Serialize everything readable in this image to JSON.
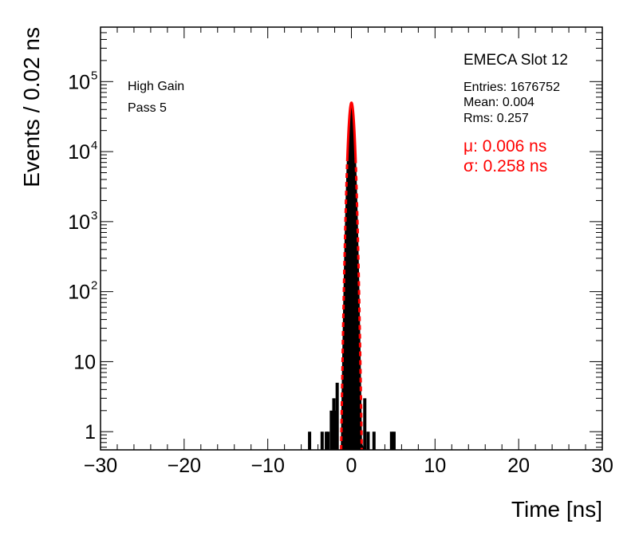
{
  "chart_data": {
    "type": "histogram",
    "title": "EMECA Slot 12",
    "xlabel": "Time [ns]",
    "ylabel": "Events / 0.02 ns",
    "xlim": [
      -30,
      30
    ],
    "ylim": [
      0.55,
      600000
    ],
    "y_scale": "log",
    "x_ticks": [
      {
        "value": -30,
        "label": "−30"
      },
      {
        "value": -20,
        "label": "−20"
      },
      {
        "value": -10,
        "label": "−10"
      },
      {
        "value": 0,
        "label": "0"
      },
      {
        "value": 10,
        "label": "10"
      },
      {
        "value": 20,
        "label": "20"
      },
      {
        "value": 30,
        "label": "30"
      }
    ],
    "y_ticks": [
      {
        "value": 1,
        "base": "1",
        "exp": ""
      },
      {
        "value": 10,
        "base": "10",
        "exp": ""
      },
      {
        "value": 100,
        "base": "10",
        "exp": "2"
      },
      {
        "value": 1000,
        "base": "10",
        "exp": "3"
      },
      {
        "value": 10000,
        "base": "10",
        "exp": "4"
      },
      {
        "value": 100000,
        "base": "10",
        "exp": "5"
      }
    ],
    "labels": {
      "gain": "High Gain",
      "pass": "Pass 5"
    },
    "stats": {
      "entries": "Entries: 1676752",
      "mean": "Mean: 0.004",
      "rms": "Rms: 0.257"
    },
    "fit": {
      "mu_label": "μ: 0.006 ns",
      "sigma_label": "σ: 0.258 ns",
      "mu": 0.006,
      "sigma": 0.258,
      "amplitude": 50000,
      "solid_range": [
        -0.5,
        0.5
      ],
      "color": "#ff0000"
    },
    "histogram": {
      "bin_width": 0.02,
      "color": "#000000",
      "core": {
        "mu": 0.004,
        "sigma": 0.257,
        "amplitude": 50000,
        "range": [
          -1.5,
          1.5
        ]
      },
      "tail_bins": [
        {
          "x": -5.0,
          "count": 1
        },
        {
          "x": -3.5,
          "count": 1
        },
        {
          "x": -3.0,
          "count": 1
        },
        {
          "x": -2.8,
          "count": 1
        },
        {
          "x": -2.4,
          "count": 2
        },
        {
          "x": -2.1,
          "count": 3
        },
        {
          "x": -1.9,
          "count": 2
        },
        {
          "x": -1.7,
          "count": 5
        },
        {
          "x": 1.6,
          "count": 3
        },
        {
          "x": 2.0,
          "count": 1
        },
        {
          "x": 2.7,
          "count": 1
        },
        {
          "x": 4.8,
          "count": 1
        },
        {
          "x": 5.1,
          "count": 1
        }
      ]
    }
  }
}
